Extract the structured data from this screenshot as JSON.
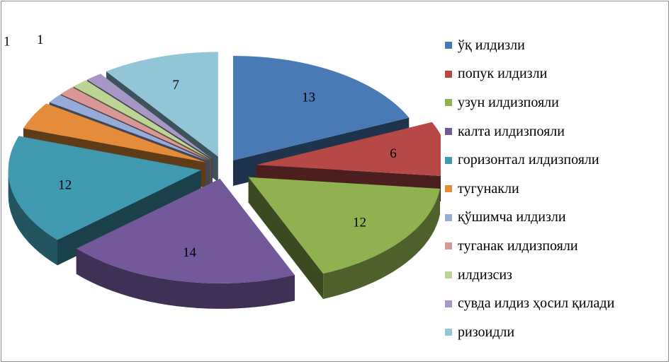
{
  "chart_data": {
    "type": "pie",
    "style": "3d-exploded",
    "legend_position": "right",
    "categories": [
      "ўқ илдизли",
      "попук илдизли",
      "узун илдизпояли",
      "калта илдизпояли",
      "горизонтал илдизпояли",
      "тугунакли",
      "қўшимча илдизли",
      "туганак илдизпояли",
      "илдизсиз",
      "сувда илдиз ҳосил қилади",
      "ризоидли"
    ],
    "values": [
      13,
      6,
      12,
      14,
      12,
      3,
      1,
      1,
      1,
      1,
      7
    ],
    "colors": [
      "#4a7ab5",
      "#b64845",
      "#8fb14f",
      "#73589a",
      "#3f9ab0",
      "#e48c3a",
      "#95abd8",
      "#d99896",
      "#bcd595",
      "#a797c4",
      "#92c5d8"
    ]
  }
}
